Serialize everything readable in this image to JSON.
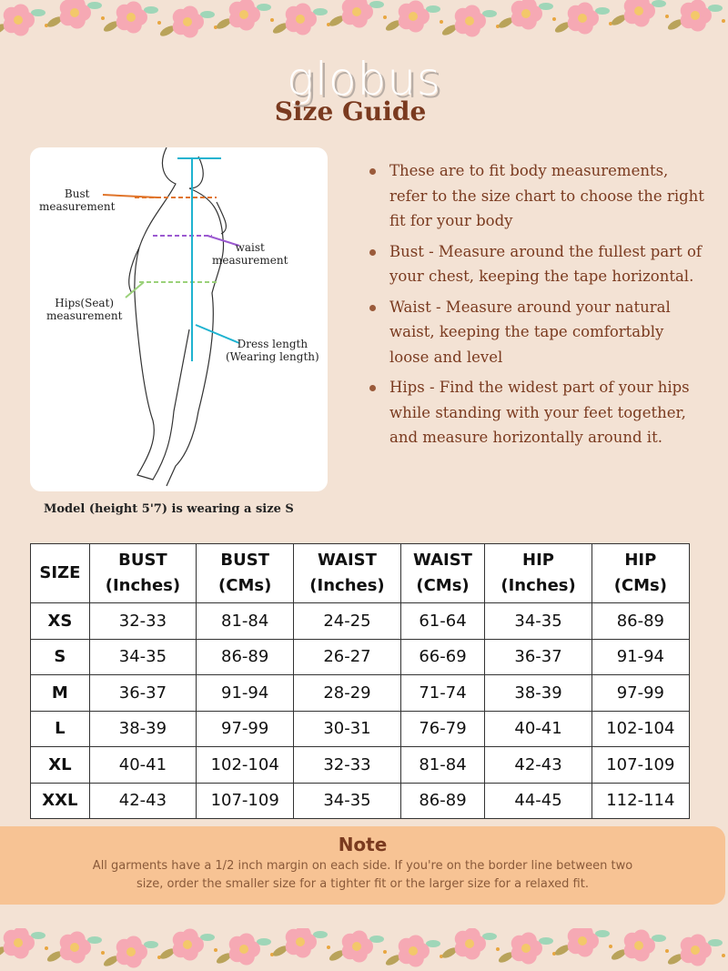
{
  "brand": "globus",
  "title": "Size Guide",
  "figure": {
    "labels": {
      "bust": "Bust\nmeasurement",
      "waist": "waist\nmeasurement",
      "hips": "Hips(Seat)\nmeasurement",
      "length": "Dress length\n(Wearing length)"
    },
    "colors": {
      "bust": "#e0742a",
      "waist": "#9b59d0",
      "hips": "#9bd17a",
      "length": "#1fb3d0"
    }
  },
  "caption": "Model (height 5'7) is wearing a size S",
  "bullets": [
    "These are to fit body measurements, refer to the size chart to choose the right fit for your body",
    "Bust - Measure around the fullest part of your chest, keeping the tape horizontal.",
    "Waist - Measure around your natural waist, keeping the tape comfortably loose and level",
    "Hips - Find the widest part of your hips while standing with your feet together, and measure horizontally around it."
  ],
  "table": {
    "headers": [
      [
        "SIZE",
        ""
      ],
      [
        "BUST",
        "(Inches)"
      ],
      [
        "BUST",
        "(CMs)"
      ],
      [
        "WAIST",
        "(Inches)"
      ],
      [
        "WAIST",
        "(CMs)"
      ],
      [
        "HIP",
        "(Inches)"
      ],
      [
        "HIP",
        "(CMs)"
      ]
    ],
    "rows": [
      [
        "XS",
        "32-33",
        "81-84",
        "24-25",
        "61-64",
        "34-35",
        "86-89"
      ],
      [
        "S",
        "34-35",
        "86-89",
        "26-27",
        "66-69",
        "36-37",
        "91-94"
      ],
      [
        "M",
        "36-37",
        "91-94",
        "28-29",
        "71-74",
        "38-39",
        "97-99"
      ],
      [
        "L",
        "38-39",
        "97-99",
        "30-31",
        "76-79",
        "40-41",
        "102-104"
      ],
      [
        "XL",
        "40-41",
        "102-104",
        "32-33",
        "81-84",
        "42-43",
        "107-109"
      ],
      [
        "XXL",
        "42-43",
        "107-109",
        "34-35",
        "86-89",
        "44-45",
        "112-114"
      ]
    ]
  },
  "note": {
    "title": "Note",
    "text": "All garments have a 1/2 inch margin on each side. If you're on the border line between two size, order the smaller size for a tighter fit or the larger size for a relaxed fit."
  }
}
